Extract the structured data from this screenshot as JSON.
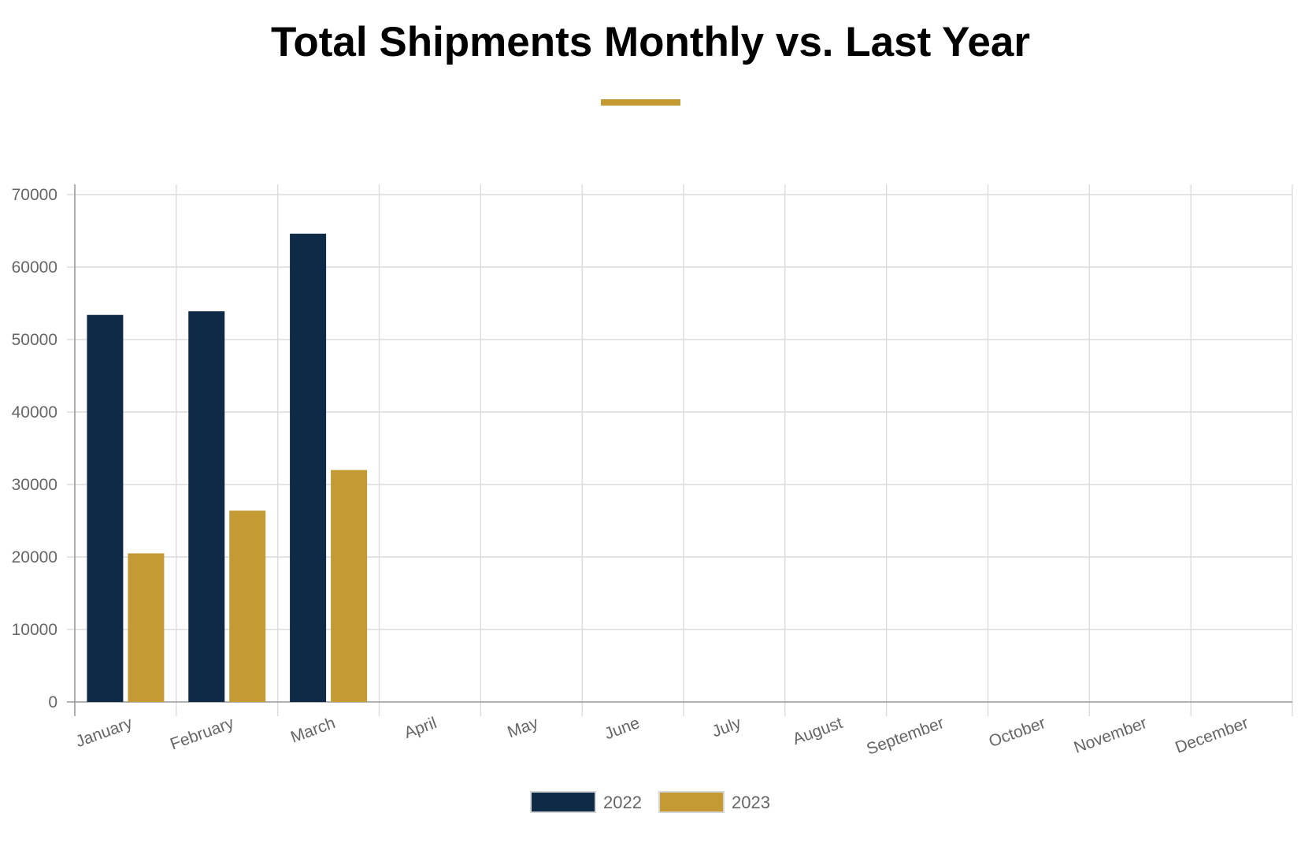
{
  "chart_data": {
    "type": "bar",
    "title": "Total Shipments Monthly vs. Last Year",
    "categories": [
      "January",
      "February",
      "March",
      "April",
      "May",
      "June",
      "July",
      "August",
      "September",
      "October",
      "November",
      "December"
    ],
    "series": [
      {
        "name": "2022",
        "color": "#0f2a47",
        "values": [
          53400,
          53900,
          64600,
          null,
          null,
          null,
          null,
          null,
          null,
          null,
          null,
          null
        ]
      },
      {
        "name": "2023",
        "color": "#c39a33",
        "values": [
          20500,
          26400,
          32000,
          null,
          null,
          null,
          null,
          null,
          null,
          null,
          null,
          null
        ]
      }
    ],
    "ylim": [
      0,
      70000
    ],
    "yticks": [
      0,
      10000,
      20000,
      30000,
      40000,
      50000,
      60000,
      70000
    ],
    "grid": true,
    "legend_position": "bottom-center"
  },
  "colors": {
    "accent": "#c39a33",
    "navy": "#0f2a47"
  }
}
